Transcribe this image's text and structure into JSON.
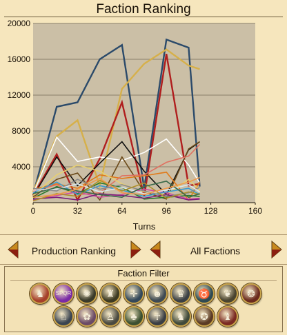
{
  "window": {
    "title": "Faction Ranking"
  },
  "controls": {
    "ranking_label": "Production Ranking",
    "faction_label": "All Factions"
  },
  "filter": {
    "title": "Faction Filter",
    "emblems": [
      {
        "name": "faction-emblem-1-icon",
        "color": "#a5402a",
        "glyph": "♞"
      },
      {
        "name": "faction-emblem-2-icon",
        "color": "#7a2aa6",
        "glyph": "SPQR"
      },
      {
        "name": "faction-emblem-3-icon",
        "color": "#3a3a2a",
        "glyph": "✺"
      },
      {
        "name": "faction-emblem-4-icon",
        "color": "#3d3a22",
        "glyph": "♜"
      },
      {
        "name": "faction-emblem-5-icon",
        "color": "#33485a",
        "glyph": "✛"
      },
      {
        "name": "faction-emblem-6-icon",
        "color": "#3e4a54",
        "glyph": "☻"
      },
      {
        "name": "faction-emblem-7-icon",
        "color": "#3a3f44",
        "glyph": "♛"
      },
      {
        "name": "faction-emblem-8-icon",
        "color": "#2e4a52",
        "glyph": "♉"
      },
      {
        "name": "faction-emblem-9-icon",
        "color": "#4a4430",
        "glyph": "❦"
      },
      {
        "name": "faction-emblem-10-icon",
        "color": "#6a2a1e",
        "glyph": "❂"
      },
      {
        "name": "faction-emblem-11-icon",
        "color": "#3a4450",
        "glyph": "♘"
      },
      {
        "name": "faction-emblem-12-icon",
        "color": "#6a4a66",
        "glyph": "✿"
      },
      {
        "name": "faction-emblem-13-icon",
        "color": "#4a4a40",
        "glyph": "♙"
      },
      {
        "name": "faction-emblem-14-icon",
        "color": "#3c5030",
        "glyph": "♣"
      },
      {
        "name": "faction-emblem-15-icon",
        "color": "#3a3e44",
        "glyph": "☥"
      },
      {
        "name": "faction-emblem-16-icon",
        "color": "#404a3a",
        "glyph": "♞"
      },
      {
        "name": "faction-emblem-17-icon",
        "color": "#5a3a24",
        "glyph": "✪"
      },
      {
        "name": "faction-emblem-18-icon",
        "color": "#7a2a22",
        "glyph": "♝"
      }
    ]
  },
  "colors": {
    "plot_bg": "#cbbfa6",
    "gridline": "#8a7f6a",
    "arrow_fill": "#c8891d",
    "arrow_dark": "#8c1f10"
  },
  "chart_data": {
    "type": "line",
    "xlabel": "Turns",
    "ylabel": "",
    "xlim": [
      0,
      160
    ],
    "ylim": [
      0,
      20000
    ],
    "xticks": [
      0,
      32,
      64,
      96,
      128,
      160
    ],
    "yticks": [
      4000,
      8000,
      12000,
      16000,
      20000
    ],
    "x": [
      0,
      17,
      32,
      48,
      64,
      80,
      96,
      112,
      120
    ],
    "series": [
      {
        "color": "#2b4a6a",
        "values": [
          900,
          10700,
          11200,
          16000,
          17600,
          1600,
          18200,
          17300,
          1800
        ]
      },
      {
        "color": "#d6b04a",
        "values": [
          1200,
          7400,
          9200,
          1900,
          12700,
          15500,
          17100,
          15300,
          14900
        ]
      },
      {
        "color": "#b01e1e",
        "values": [
          800,
          5400,
          300,
          4900,
          11200,
          700,
          16600,
          1900,
          2100
        ]
      },
      {
        "color": "#ffffff",
        "values": [
          1000,
          7300,
          4600,
          5100,
          4700,
          5600,
          7100,
          4200,
          2200
        ]
      },
      {
        "color": "#111111",
        "values": [
          700,
          5100,
          1900,
          4400,
          6800,
          3500,
          900,
          5900,
          6800
        ]
      },
      {
        "color": "#6b4a1a",
        "values": [
          600,
          2600,
          3300,
          300,
          5100,
          1200,
          400,
          6000,
          6800
        ]
      },
      {
        "color": "#e07a1a",
        "values": [
          1500,
          2100,
          1600,
          3100,
          2700,
          3000,
          3400,
          300,
          2300
        ]
      },
      {
        "color": "#e07060",
        "values": [
          1300,
          2000,
          900,
          1100,
          3000,
          3100,
          4500,
          5200,
          6500
        ]
      },
      {
        "color": "#e8d070",
        "values": [
          800,
          3100,
          4200,
          3500,
          2100,
          1200,
          900,
          2600,
          1400
        ]
      },
      {
        "color": "#2a7a2a",
        "values": [
          500,
          1800,
          1000,
          2200,
          1700,
          400,
          600,
          800,
          700
        ]
      },
      {
        "color": "#d04aa0",
        "values": [
          300,
          800,
          1200,
          600,
          900,
          1500,
          1100,
          400,
          500
        ]
      },
      {
        "color": "#3a9ad0",
        "values": [
          1100,
          2300,
          900,
          1900,
          1400,
          700,
          1200,
          1600,
          900
        ]
      },
      {
        "color": "#8a8a8a",
        "values": [
          1600,
          1300,
          2600,
          1500,
          2000,
          1300,
          700,
          1100,
          1700
        ]
      },
      {
        "color": "#7a1e7a",
        "values": [
          400,
          600,
          300,
          1000,
          800,
          500,
          900,
          300,
          400
        ]
      },
      {
        "color": "#d8e8f0",
        "values": [
          1400,
          1500,
          2100,
          1200,
          1700,
          1000,
          1400,
          2000,
          1200
        ]
      },
      {
        "color": "#b0902a",
        "values": [
          200,
          1000,
          700,
          2500,
          1300,
          2200,
          500,
          1200,
          900
        ]
      },
      {
        "color": "#3a6a4a",
        "values": [
          1000,
          1700,
          1300,
          900,
          600,
          1800,
          2400,
          600,
          1000
        ]
      },
      {
        "color": "#ef9a4a",
        "values": [
          600,
          900,
          1500,
          2700,
          1100,
          900,
          1600,
          2300,
          2800
        ]
      }
    ]
  }
}
